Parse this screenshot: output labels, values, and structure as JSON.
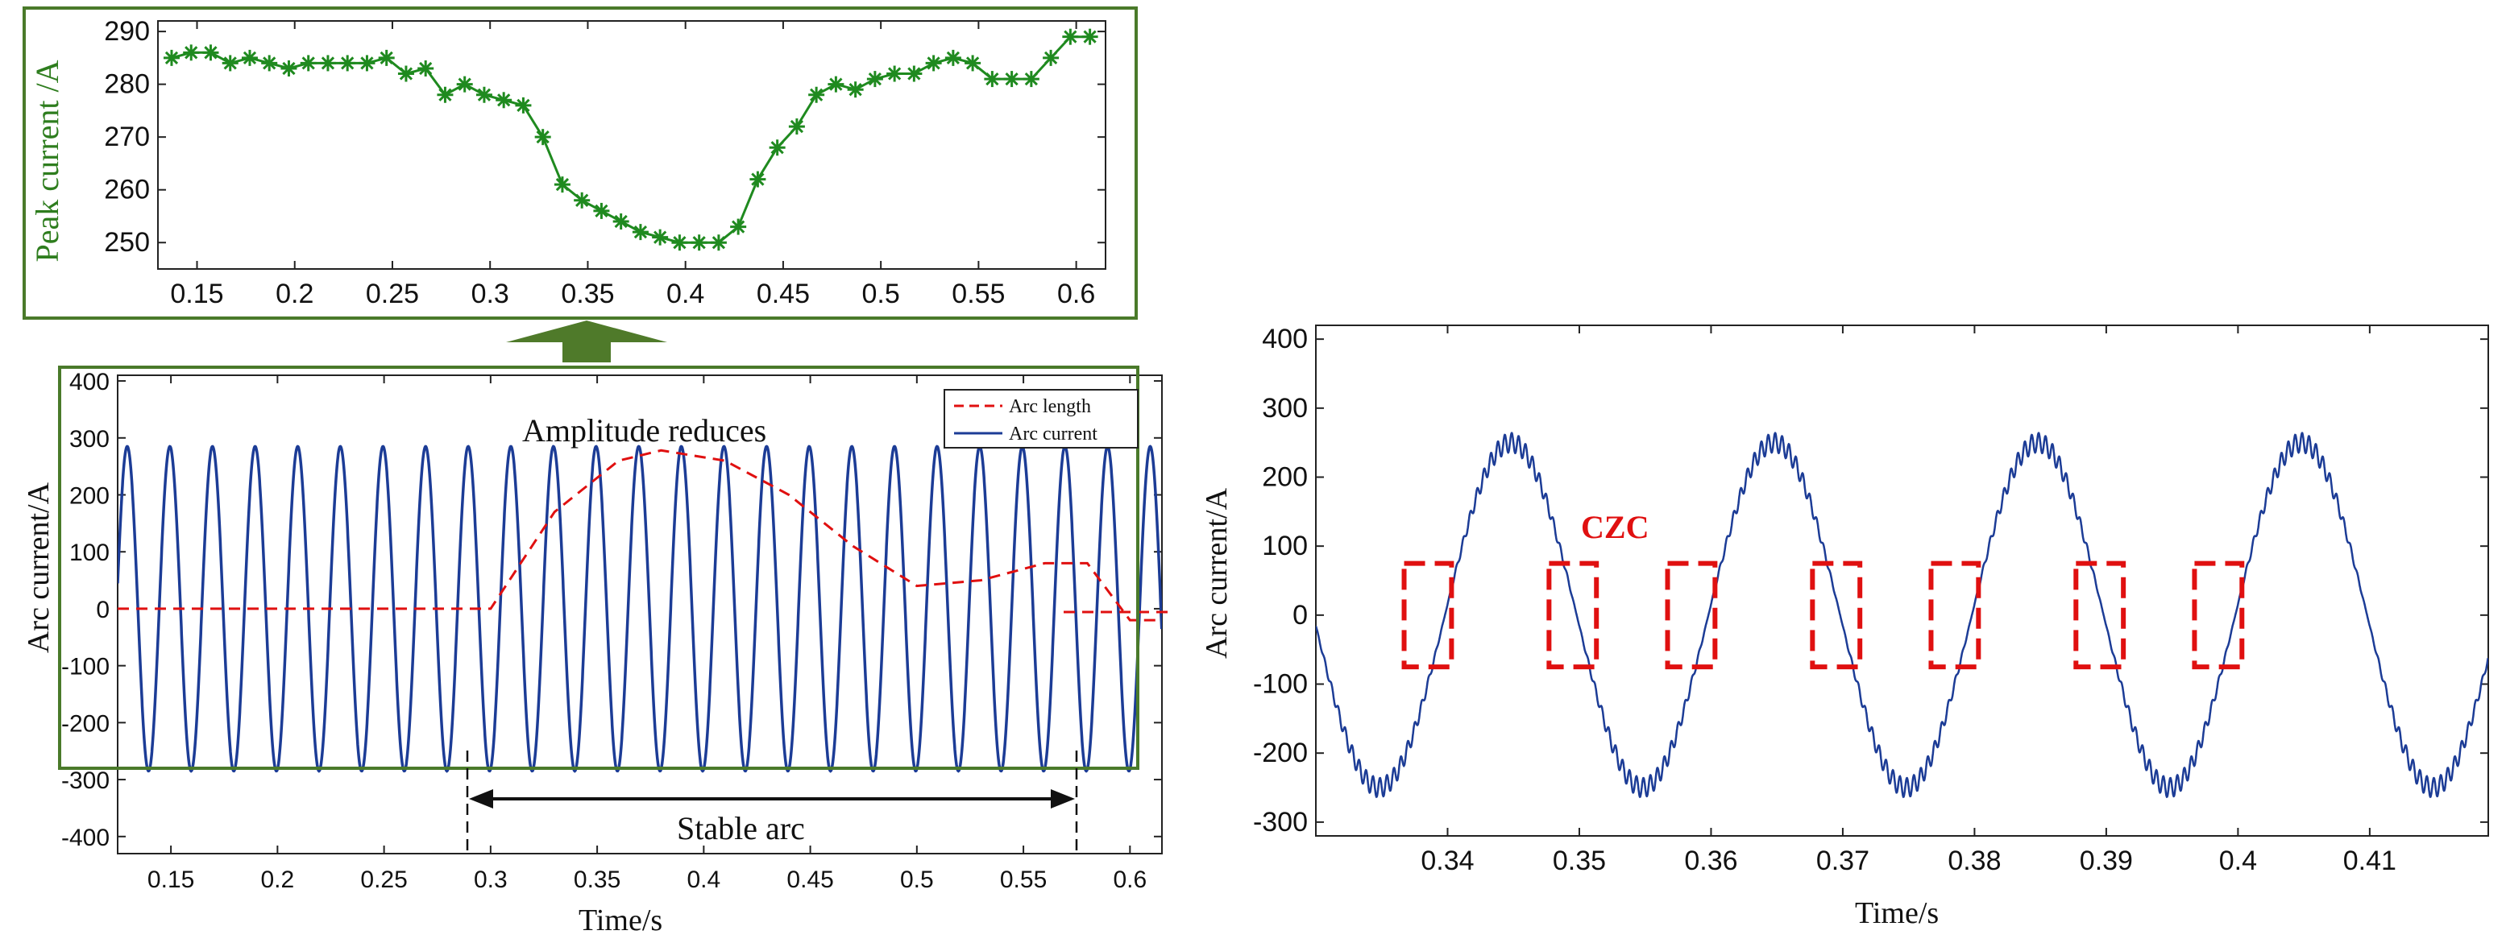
{
  "colors": {
    "arc_current": "#1c3c96",
    "arc_length": "#e01010",
    "peak": "#1f8a1f",
    "frame_green": "#4a7a2a",
    "arrow": "#4f7a2a",
    "czc_box": "#e01010"
  },
  "chart_data": [
    {
      "id": "peak",
      "type": "line",
      "xlabel": "",
      "ylabel": "Peak current /A",
      "xlim": [
        0.13,
        0.615
      ],
      "ylim": [
        245,
        292
      ],
      "xticks": [
        "0.15",
        "0.2",
        "0.25",
        "0.3",
        "0.35",
        "0.4",
        "0.45",
        "0.5",
        "0.55",
        "0.6"
      ],
      "yticks": [
        "250",
        "260",
        "270",
        "280",
        "290"
      ],
      "series": [
        {
          "name": "Peak current",
          "marker": "*",
          "x": [
            0.137,
            0.147,
            0.157,
            0.167,
            0.177,
            0.187,
            0.197,
            0.207,
            0.217,
            0.227,
            0.237,
            0.247,
            0.257,
            0.267,
            0.277,
            0.287,
            0.297,
            0.307,
            0.317,
            0.327,
            0.337,
            0.347,
            0.357,
            0.367,
            0.377,
            0.387,
            0.397,
            0.407,
            0.417,
            0.427,
            0.437,
            0.447,
            0.457,
            0.467,
            0.477,
            0.487,
            0.497,
            0.507,
            0.517,
            0.527,
            0.537,
            0.547,
            0.557,
            0.567,
            0.577,
            0.587,
            0.597,
            0.607
          ],
          "values": [
            285,
            286,
            286,
            284,
            285,
            284,
            283,
            284,
            284,
            284,
            284,
            285,
            282,
            283,
            278,
            280,
            278,
            277,
            276,
            270,
            261,
            258,
            256,
            254,
            252,
            251,
            250,
            250,
            250,
            253,
            262,
            268,
            272,
            278,
            280,
            279,
            281,
            282,
            282,
            284,
            285,
            284,
            281,
            281,
            281,
            285,
            289,
            289
          ]
        }
      ]
    },
    {
      "id": "main",
      "type": "line",
      "xlabel": "Time/s",
      "ylabel": "Arc current/A",
      "xlim": [
        0.125,
        0.615
      ],
      "ylim": [
        -430,
        410
      ],
      "xticks": [
        "0.15",
        "0.2",
        "0.25",
        "0.3",
        "0.35",
        "0.4",
        "0.45",
        "0.5",
        "0.55",
        "0.6"
      ],
      "yticks": [
        "400",
        "300",
        "200",
        "100",
        "0",
        "-100",
        "-200",
        "-300",
        "-400"
      ],
      "legend": [
        "Arc length",
        "Arc current"
      ],
      "annotations": [
        "Amplitude reduces",
        "Stable arc"
      ],
      "series": [
        {
          "name": "Arc current",
          "frequency_hz": 50,
          "amplitude_A": 285
        },
        {
          "name": "Arc length",
          "x": [
            0.125,
            0.3,
            0.33,
            0.36,
            0.38,
            0.41,
            0.44,
            0.47,
            0.5,
            0.53,
            0.56,
            0.58,
            0.6,
            0.615
          ],
          "values": [
            0,
            0,
            170,
            260,
            278,
            260,
            200,
            110,
            40,
            50,
            80,
            80,
            -20,
            -20
          ]
        }
      ]
    },
    {
      "id": "zoom",
      "type": "line",
      "xlabel": "Time/s",
      "ylabel": "Arc current/A",
      "xlim": [
        0.33,
        0.419
      ],
      "ylim": [
        -320,
        420
      ],
      "xticks": [
        "0.34",
        "0.35",
        "0.36",
        "0.37",
        "0.38",
        "0.39",
        "0.4",
        "0.41"
      ],
      "yticks": [
        "400",
        "300",
        "200",
        "100",
        "0",
        "-100",
        "-200",
        "-300"
      ],
      "annotations": [
        "CZC"
      ],
      "series": [
        {
          "name": "Arc current",
          "frequency_hz": 50,
          "amplitude_A": 250
        }
      ],
      "czc_windows": [
        0.3385,
        0.3495,
        0.3585,
        0.3695,
        0.3785,
        0.3895,
        0.3985
      ]
    }
  ]
}
